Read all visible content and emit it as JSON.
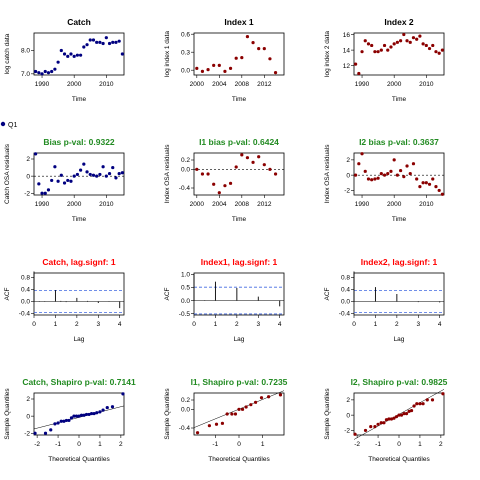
{
  "page_legend": {
    "label": "Q1",
    "color": "#000080"
  },
  "chart_data": [
    {
      "type": "scatter",
      "title": "Catch",
      "title_color": "#000000",
      "xlabel": "Time",
      "ylabel": "log catch data",
      "xlim": [
        1987.5,
        2015.5
      ],
      "ylim": [
        6.95,
        8.75
      ],
      "xticks": [
        "1990",
        "2000",
        "2010"
      ],
      "yticks": [
        "7.0",
        "8.0"
      ],
      "point_color": "#000080",
      "x": [
        1988,
        1989,
        1990,
        1991,
        1992,
        1993,
        1994,
        1995,
        1996,
        1997,
        1998,
        1999,
        2000,
        2001,
        2002,
        2003,
        2004,
        2005,
        2006,
        2007,
        2008,
        2009,
        2010,
        2011,
        2012,
        2013,
        2014,
        2015
      ],
      "y": [
        7.1,
        7.05,
        7.0,
        7.1,
        7.05,
        7.1,
        7.2,
        7.5,
        8.0,
        7.85,
        7.75,
        7.85,
        7.75,
        7.8,
        7.8,
        8.15,
        8.25,
        8.45,
        8.45,
        8.35,
        8.35,
        8.3,
        8.55,
        8.3,
        8.35,
        8.35,
        8.4,
        7.85
      ]
    },
    {
      "type": "scatter",
      "title": "Index 1",
      "title_color": "#000000",
      "xlabel": "Time",
      "ylabel": "log index 1 data",
      "xlim": [
        1999.5,
        2015.5
      ],
      "ylim": [
        -0.08,
        0.62
      ],
      "xticks": [
        "2000",
        "2004",
        "2008",
        "2012"
      ],
      "yticks": [
        "0.0",
        "0.3",
        "0.6"
      ],
      "point_color": "#8b0000",
      "x": [
        2000,
        2001,
        2002,
        2003,
        2004,
        2005,
        2006,
        2007,
        2008,
        2009,
        2010,
        2011,
        2012,
        2013,
        2014
      ],
      "y": [
        0.03,
        -0.02,
        0.01,
        0.08,
        0.08,
        -0.02,
        0.03,
        0.2,
        0.21,
        0.56,
        0.46,
        0.36,
        0.36,
        0.19,
        -0.04
      ]
    },
    {
      "type": "scatter",
      "title": "Index 2",
      "title_color": "#000000",
      "xlabel": "Time",
      "ylabel": "log index 2 data",
      "xlim": [
        1987.5,
        2015.5
      ],
      "ylim": [
        10.8,
        16.2
      ],
      "xticks": [
        "1990",
        "2000",
        "2010"
      ],
      "yticks": [
        "12",
        "14",
        "16"
      ],
      "point_color": "#8b0000",
      "x": [
        1988,
        1989,
        1990,
        1991,
        1992,
        1993,
        1994,
        1995,
        1996,
        1997,
        1998,
        1999,
        2000,
        2001,
        2002,
        2003,
        2004,
        2005,
        2006,
        2007,
        2008,
        2009,
        2010,
        2011,
        2012,
        2013,
        2014,
        2015
      ],
      "y": [
        12.2,
        11.0,
        13.8,
        15.2,
        14.8,
        14.6,
        13.8,
        13.8,
        14.0,
        14.6,
        14.0,
        14.4,
        14.8,
        15.0,
        15.2,
        16.0,
        15.2,
        15.0,
        15.6,
        15.4,
        15.8,
        14.8,
        14.6,
        14.2,
        14.6,
        13.8,
        13.6,
        14.0
      ]
    },
    {
      "type": "scatter",
      "title": "Bias p-val: 0.9322",
      "title_color": "#228b22",
      "xlabel": "Time",
      "ylabel": "Catch OSA residuals",
      "xlim": [
        1987.5,
        2015.5
      ],
      "ylim": [
        -2.2,
        2.7
      ],
      "xticks": [
        "1990",
        "2000",
        "2010"
      ],
      "yticks": [
        "-2",
        "0",
        "2"
      ],
      "point_color": "#000080",
      "zero_line": true,
      "x": [
        1988,
        1989,
        1990,
        1991,
        1992,
        1993,
        1994,
        1995,
        1996,
        1997,
        1998,
        1999,
        2000,
        2001,
        2002,
        2003,
        2004,
        2005,
        2006,
        2007,
        2008,
        2009,
        2010,
        2011,
        2012,
        2013,
        2014,
        2015
      ],
      "y": [
        2.6,
        -0.9,
        -2.0,
        -2.0,
        -1.6,
        -0.5,
        1.1,
        -0.6,
        0.1,
        -0.8,
        -0.5,
        -0.6,
        0.0,
        0.2,
        0.7,
        1.4,
        0.5,
        0.2,
        0.1,
        0.0,
        0.2,
        1.1,
        0.0,
        0.3,
        1.0,
        -0.2,
        0.3,
        0.4
      ]
    },
    {
      "type": "scatter",
      "title": "I1 bias p-val: 0.6424",
      "title_color": "#228b22",
      "xlabel": "Time",
      "ylabel": "Index OSA residuals",
      "xlim": [
        1999.5,
        2015.5
      ],
      "ylim": [
        -0.55,
        0.35
      ],
      "xticks": [
        "2000",
        "2004",
        "2008",
        "2012"
      ],
      "yticks": [
        "-0.4",
        "0.0",
        "0.2"
      ],
      "point_color": "#8b0000",
      "zero_line": true,
      "x": [
        2000,
        2001,
        2002,
        2003,
        2004,
        2005,
        2006,
        2007,
        2008,
        2009,
        2010,
        2011,
        2012,
        2013,
        2014
      ],
      "y": [
        0.0,
        -0.1,
        -0.1,
        -0.32,
        -0.5,
        -0.35,
        -0.3,
        0.05,
        0.31,
        0.25,
        0.15,
        0.27,
        0.1,
        0.0,
        -0.1
      ]
    },
    {
      "type": "scatter",
      "title": "I2 bias p-val: 0.3637",
      "title_color": "#228b22",
      "xlabel": "Time",
      "ylabel": "Index OSA residuals",
      "xlim": [
        1987.5,
        2015.5
      ],
      "ylim": [
        -2.6,
        2.9
      ],
      "xticks": [
        "1990",
        "2000",
        "2010"
      ],
      "yticks": [
        "-2",
        "0",
        "2"
      ],
      "point_color": "#8b0000",
      "zero_line": true,
      "x": [
        1988,
        1989,
        1990,
        1991,
        1992,
        1993,
        1994,
        1995,
        1996,
        1997,
        1998,
        1999,
        2000,
        2001,
        2002,
        2003,
        2004,
        2005,
        2006,
        2007,
        2008,
        2009,
        2010,
        2011,
        2012,
        2013,
        2014,
        2015
      ],
      "y": [
        0.0,
        1.5,
        2.8,
        0.5,
        -0.5,
        -0.6,
        -0.5,
        -0.4,
        0.2,
        0.0,
        0.2,
        0.5,
        2.0,
        0.0,
        0.6,
        -0.2,
        1.2,
        0.2,
        1.5,
        -0.5,
        -1.5,
        -1.0,
        -1.0,
        -1.2,
        -0.5,
        -1.5,
        -2.0,
        -2.5
      ]
    },
    {
      "type": "bar",
      "title": "Catch, lag.signf: 1",
      "title_color": "#ff0000",
      "xlabel": "Lag",
      "ylabel": "ACF",
      "xlim": [
        0,
        4.2
      ],
      "ylim": [
        -0.45,
        0.95
      ],
      "xticks": [
        "0",
        "1",
        "2",
        "3",
        "4"
      ],
      "yticks": [
        "-0.4",
        "0.0",
        "0.4",
        "0.8"
      ],
      "lags": [
        0.0,
        0.25,
        0.5,
        0.75,
        1.0,
        1.25,
        1.5,
        1.75,
        2.0,
        2.25,
        2.5,
        2.75,
        3.0,
        3.25,
        3.5,
        3.75,
        4.0
      ],
      "values": [
        1.0,
        0.01,
        -0.01,
        0.0,
        0.38,
        0.02,
        -0.02,
        0.0,
        0.12,
        0.0,
        0.02,
        0.0,
        -0.05,
        0.0,
        0.01,
        0.0,
        -0.22
      ],
      "ci": 0.37,
      "ci_color": "#4169e1"
    },
    {
      "type": "bar",
      "title": "Index1, lag.signf: 1",
      "title_color": "#ff0000",
      "xlabel": "Lag",
      "ylabel": "ACF",
      "xlim": [
        0,
        4.2
      ],
      "ylim": [
        -0.55,
        1.05
      ],
      "xticks": [
        "0",
        "1",
        "2",
        "3",
        "4"
      ],
      "yticks": [
        "-0.5",
        "0.0",
        "0.5",
        "1.0"
      ],
      "lags": [
        0.0,
        0.25,
        0.5,
        0.75,
        1.0,
        1.25,
        1.5,
        1.75,
        2.0,
        2.25,
        2.5,
        2.75,
        3.0,
        3.25,
        3.5,
        3.75,
        4.0
      ],
      "values": [
        1.0,
        0.0,
        0.01,
        0.0,
        0.72,
        0.0,
        0.0,
        0.0,
        0.48,
        0.0,
        0.0,
        0.0,
        0.15,
        0.0,
        0.0,
        0.0,
        -0.22
      ],
      "ci": 0.51,
      "ci_color": "#4169e1"
    },
    {
      "type": "bar",
      "title": "Index2, lag.signf: 1",
      "title_color": "#ff0000",
      "xlabel": "Lag",
      "ylabel": "ACF",
      "xlim": [
        0,
        4.2
      ],
      "ylim": [
        -0.45,
        0.95
      ],
      "xticks": [
        "0",
        "1",
        "2",
        "3",
        "4"
      ],
      "yticks": [
        "-0.4",
        "0.0",
        "0.4",
        "0.8"
      ],
      "lags": [
        0.0,
        0.25,
        0.5,
        0.75,
        1.0,
        1.25,
        1.5,
        1.75,
        2.0,
        2.25,
        2.5,
        2.75,
        3.0,
        3.25,
        3.5,
        3.75,
        4.0
      ],
      "values": [
        1.0,
        0.0,
        0.0,
        0.0,
        0.48,
        0.0,
        0.0,
        0.0,
        0.25,
        0.0,
        0.0,
        0.0,
        -0.02,
        0.0,
        0.0,
        0.0,
        -0.03
      ],
      "ci": 0.37,
      "ci_color": "#4169e1"
    },
    {
      "type": "scatter",
      "subtype": "qq",
      "title": "Catch, Shapiro p-val: 0.7141",
      "title_color": "#228b22",
      "xlabel": "Theoretical Quantiles",
      "ylabel": "Sample Quantiles",
      "xlim": [
        -2.15,
        2.15
      ],
      "ylim": [
        -2.2,
        2.7
      ],
      "xticks": [
        "-2",
        "-1",
        "0",
        "1",
        "2"
      ],
      "yticks": [
        "-2",
        "0",
        "2"
      ],
      "point_color": "#000080",
      "x": [
        -2.1,
        -1.6,
        -1.35,
        -1.15,
        -1.0,
        -0.85,
        -0.72,
        -0.6,
        -0.48,
        -0.36,
        -0.24,
        -0.12,
        0.0,
        0.12,
        0.24,
        0.36,
        0.48,
        0.6,
        0.72,
        0.85,
        1.0,
        1.15,
        1.35,
        1.6,
        2.1
      ],
      "y": [
        -2.0,
        -2.0,
        -1.6,
        -0.9,
        -0.8,
        -0.6,
        -0.6,
        -0.5,
        -0.5,
        -0.2,
        0.0,
        0.0,
        0.0,
        0.1,
        0.1,
        0.2,
        0.2,
        0.3,
        0.3,
        0.4,
        0.5,
        0.7,
        1.0,
        1.1,
        2.6
      ]
    },
    {
      "type": "scatter",
      "subtype": "qq",
      "title": "I1, Shapiro p-val: 0.7235",
      "title_color": "#228b22",
      "xlabel": "Theoretical Quantiles",
      "ylabel": "Sample Quantiles",
      "xlim": [
        -1.9,
        1.9
      ],
      "ylim": [
        -0.55,
        0.35
      ],
      "xticks": [
        "-1",
        "0",
        "1"
      ],
      "yticks": [
        "-0.4",
        "0.0",
        "0.2"
      ],
      "point_color": "#8b0000",
      "x": [
        -1.75,
        -1.25,
        -0.95,
        -0.7,
        -0.5,
        -0.3,
        -0.15,
        0.0,
        0.15,
        0.3,
        0.5,
        0.7,
        0.95,
        1.25,
        1.75
      ],
      "y": [
        -0.5,
        -0.35,
        -0.32,
        -0.3,
        -0.1,
        -0.1,
        -0.1,
        0.0,
        0.0,
        0.05,
        0.1,
        0.15,
        0.25,
        0.27,
        0.31
      ]
    },
    {
      "type": "scatter",
      "subtype": "qq",
      "title": "I2, Shapiro p-val: 0.9825",
      "title_color": "#228b22",
      "xlabel": "Theoretical Quantiles",
      "ylabel": "Sample Quantiles",
      "xlim": [
        -2.15,
        2.15
      ],
      "ylim": [
        -2.6,
        2.9
      ],
      "xticks": [
        "-2",
        "-1",
        "0",
        "1",
        "2"
      ],
      "yticks": [
        "-2",
        "0",
        "2"
      ],
      "point_color": "#8b0000",
      "x": [
        -2.1,
        -1.6,
        -1.35,
        -1.15,
        -1.0,
        -0.85,
        -0.72,
        -0.6,
        -0.48,
        -0.36,
        -0.24,
        -0.12,
        0.0,
        0.12,
        0.24,
        0.36,
        0.48,
        0.6,
        0.72,
        0.85,
        1.0,
        1.15,
        1.35,
        1.6,
        2.1
      ],
      "y": [
        -2.5,
        -2.0,
        -1.5,
        -1.5,
        -1.2,
        -1.0,
        -1.0,
        -0.6,
        -0.5,
        -0.5,
        -0.4,
        -0.2,
        0.0,
        0.0,
        0.2,
        0.2,
        0.5,
        0.6,
        1.2,
        1.5,
        1.5,
        1.5,
        2.0,
        2.0,
        2.8
      ]
    }
  ]
}
